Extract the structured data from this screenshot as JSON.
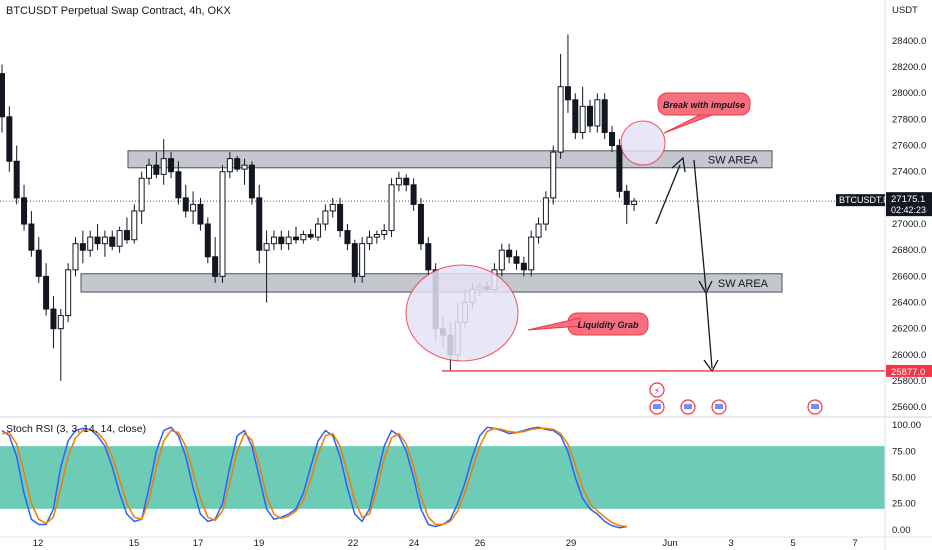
{
  "header": {
    "title": "BTCUSDT Perpetual Swap Contract, 4h, OKX",
    "currency": "USDT"
  },
  "indicator": {
    "label": "Stoch RSI (3, 3, 14, 14, close)"
  },
  "colors": {
    "up": "#131722",
    "down": "#131722",
    "zone": "#b2b5be",
    "liquidity": "#e5e3f6",
    "red": "#f23645",
    "stoch_k": "#2962ff",
    "stoch_d": "#f57c00",
    "stoch_band": "#3dba9e"
  },
  "chart_data": [
    {
      "type": "candlestick",
      "y_ticks": [
        "28400.0",
        "28200.0",
        "28000.0",
        "27800.0",
        "27600.0",
        "27400.0",
        "27200.0",
        "27000.0",
        "26800.0",
        "26600.0",
        "26400.0",
        "26200.0",
        "26000.0",
        "25800.0",
        "25600.0"
      ],
      "ylim": [
        25540,
        28560
      ],
      "x_ticks": [
        "12",
        "15",
        "17",
        "19",
        "22",
        "24",
        "26",
        "29",
        "Jun",
        "3",
        "5",
        "7"
      ],
      "zones": [
        {
          "label": "SW AREA",
          "low": 27430,
          "high": 27560
        },
        {
          "label": "SW AREA",
          "low": 26480,
          "high": 26620
        }
      ],
      "support_line": 25877,
      "price_tags": [
        {
          "label": "BTCUSDT.P",
          "value": "27175.1",
          "sub": "02:42:23"
        },
        {
          "label": "",
          "value": "25877.0"
        }
      ],
      "annotations": [
        "Break with impulse",
        "Liquidity Grab"
      ],
      "candles": [
        [
          28150,
          28220,
          27700,
          27820
        ],
        [
          27820,
          27900,
          27400,
          27480
        ],
        [
          27480,
          27600,
          27150,
          27200
        ],
        [
          27200,
          27300,
          26950,
          27000
        ],
        [
          27000,
          27100,
          26750,
          26800
        ],
        [
          26800,
          26900,
          26550,
          26600
        ],
        [
          26600,
          26700,
          26300,
          26350
        ],
        [
          26350,
          26450,
          26050,
          26200
        ],
        [
          26200,
          26350,
          25800,
          26300
        ],
        [
          26300,
          26700,
          26250,
          26650
        ],
        [
          26650,
          26900,
          26600,
          26850
        ],
        [
          26850,
          26950,
          26700,
          26800
        ],
        [
          26800,
          26950,
          26750,
          26900
        ],
        [
          26900,
          27000,
          26800,
          26850
        ],
        [
          26850,
          26950,
          26750,
          26900
        ],
        [
          26900,
          26950,
          26800,
          26830
        ],
        [
          26830,
          26980,
          26780,
          26950
        ],
        [
          26950,
          27050,
          26850,
          26880
        ],
        [
          26880,
          27150,
          26850,
          27100
        ],
        [
          27100,
          27400,
          27000,
          27350
        ],
        [
          27350,
          27500,
          27300,
          27450
        ],
        [
          27450,
          27550,
          27350,
          27380
        ],
        [
          27380,
          27650,
          27300,
          27500
        ],
        [
          27500,
          27550,
          27350,
          27400
        ],
        [
          27400,
          27480,
          27150,
          27200
        ],
        [
          27200,
          27300,
          27050,
          27100
        ],
        [
          27100,
          27250,
          27000,
          27150
        ],
        [
          27150,
          27200,
          26950,
          27000
        ],
        [
          27000,
          27050,
          26700,
          26750
        ],
        [
          26750,
          26900,
          26550,
          26600
        ],
        [
          26600,
          27450,
          26550,
          27400
        ],
        [
          27400,
          27550,
          27350,
          27500
        ],
        [
          27500,
          27520,
          27400,
          27420
        ],
        [
          27420,
          27500,
          27300,
          27450
        ],
        [
          27450,
          27480,
          27150,
          27200
        ],
        [
          27200,
          27300,
          26700,
          26800
        ],
        [
          26800,
          26950,
          26400,
          26850
        ],
        [
          26850,
          26950,
          26800,
          26900
        ],
        [
          26900,
          26950,
          26800,
          26850
        ],
        [
          26850,
          26950,
          26800,
          26900
        ],
        [
          26900,
          26980,
          26850,
          26880
        ],
        [
          26880,
          26950,
          26850,
          26920
        ],
        [
          26920,
          26960,
          26880,
          26900
        ],
        [
          26900,
          27050,
          26870,
          27000
        ],
        [
          27000,
          27150,
          26950,
          27100
        ],
        [
          27100,
          27200,
          27050,
          27150
        ],
        [
          27150,
          27200,
          26900,
          26950
        ],
        [
          26950,
          27000,
          26800,
          26850
        ],
        [
          26850,
          26880,
          26550,
          26600
        ],
        [
          26600,
          26900,
          26550,
          26850
        ],
        [
          26850,
          26950,
          26800,
          26900
        ],
        [
          26900,
          26950,
          26850,
          26920
        ],
        [
          26920,
          27000,
          26880,
          26950
        ],
        [
          26950,
          27350,
          26900,
          27300
        ],
        [
          27300,
          27400,
          27250,
          27350
        ],
        [
          27350,
          27380,
          27250,
          27300
        ],
        [
          27300,
          27350,
          27100,
          27150
        ],
        [
          27150,
          27200,
          26800,
          26850
        ],
        [
          26850,
          26900,
          26600,
          26650
        ],
        [
          26650,
          26700,
          26100,
          26200
        ],
        [
          26200,
          26300,
          26050,
          26150
        ],
        [
          26150,
          26250,
          25880,
          26000
        ],
        [
          26000,
          26400,
          25950,
          26250
        ],
        [
          26250,
          26500,
          26200,
          26400
        ],
        [
          26400,
          26550,
          26350,
          26500
        ],
        [
          26500,
          26550,
          26450,
          26520
        ],
        [
          26520,
          26560,
          26480,
          26500
        ],
        [
          26500,
          26700,
          26480,
          26650
        ],
        [
          26650,
          26850,
          26600,
          26800
        ],
        [
          26800,
          26850,
          26700,
          26750
        ],
        [
          26750,
          26800,
          26650,
          26700
        ],
        [
          26700,
          26750,
          26600,
          26650
        ],
        [
          26650,
          26950,
          26600,
          26900
        ],
        [
          26900,
          27050,
          26850,
          27000
        ],
        [
          27000,
          27250,
          26950,
          27200
        ],
        [
          27200,
          27600,
          27150,
          27550
        ],
        [
          27550,
          28300,
          27500,
          28050
        ],
        [
          28050,
          28450,
          27850,
          27950
        ],
        [
          27950,
          28000,
          27650,
          27700
        ],
        [
          27700,
          28050,
          27650,
          27900
        ],
        [
          27900,
          27950,
          27700,
          27750
        ],
        [
          27750,
          28000,
          27700,
          27950
        ],
        [
          27950,
          28000,
          27650,
          27700
        ],
        [
          27700,
          27750,
          27550,
          27600
        ],
        [
          27600,
          27650,
          27200,
          27250
        ],
        [
          27250,
          27300,
          27000,
          27150
        ],
        [
          27150,
          27200,
          27100,
          27175
        ]
      ]
    },
    {
      "type": "line",
      "title": "Stoch RSI (3, 3, 14, 14, close)",
      "y_ticks": [
        "100.00",
        "75.00",
        "50.00",
        "25.00",
        "0.00"
      ],
      "ylim": [
        -5,
        105
      ],
      "band": [
        20,
        80
      ],
      "series": [
        {
          "name": "",
          "color": "#2962ff",
          "values": [
            95,
            90,
            70,
            35,
            10,
            5,
            5,
            20,
            60,
            85,
            95,
            97,
            96,
            90,
            80,
            60,
            35,
            15,
            8,
            10,
            40,
            75,
            95,
            98,
            90,
            70,
            40,
            15,
            8,
            10,
            25,
            60,
            90,
            95,
            80,
            50,
            20,
            10,
            12,
            15,
            20,
            35,
            60,
            85,
            95,
            90,
            70,
            40,
            15,
            8,
            20,
            50,
            80,
            95,
            90,
            75,
            50,
            20,
            5,
            3,
            5,
            10,
            25,
            45,
            70,
            90,
            98,
            97,
            95,
            92,
            93,
            95,
            97,
            98,
            96,
            95,
            90,
            75,
            50,
            30,
            20,
            15,
            8,
            4,
            2,
            3
          ]
        },
        {
          "name": "",
          "color": "#f57c00",
          "values": [
            92,
            93,
            82,
            55,
            25,
            10,
            6,
            12,
            40,
            70,
            88,
            95,
            96,
            93,
            85,
            70,
            48,
            25,
            12,
            10,
            28,
            60,
            85,
            95,
            93,
            80,
            55,
            30,
            12,
            9,
            18,
            45,
            75,
            92,
            86,
            62,
            32,
            15,
            11,
            13,
            18,
            28,
            48,
            72,
            90,
            92,
            80,
            55,
            28,
            12,
            15,
            38,
            68,
            88,
            92,
            82,
            60,
            32,
            12,
            5,
            5,
            8,
            18,
            36,
            58,
            80,
            94,
            97,
            96,
            94,
            93,
            94,
            96,
            97,
            97,
            96,
            92,
            82,
            62,
            40,
            25,
            18,
            12,
            7,
            4,
            3
          ]
        }
      ],
      "x_ticks": [
        "12",
        "15",
        "17",
        "19",
        "22",
        "24",
        "26",
        "29",
        "Jun",
        "3",
        "5",
        "7"
      ]
    }
  ]
}
